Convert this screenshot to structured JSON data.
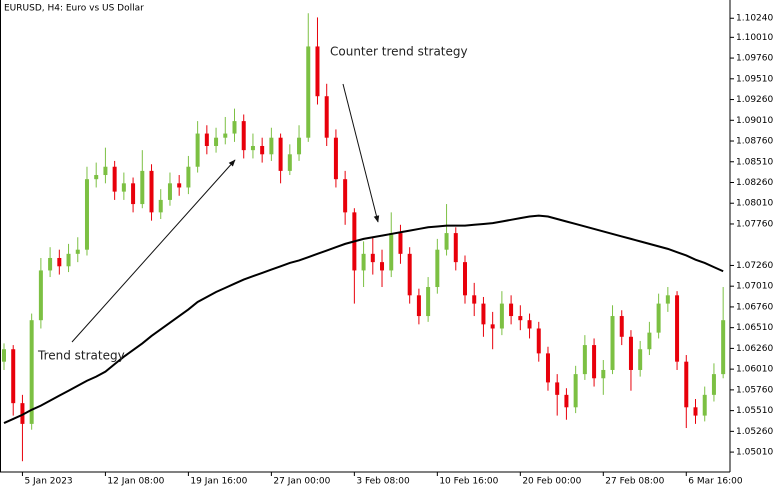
{
  "chart_data": {
    "type": "candlestick",
    "title": "EURUSD, H4:  Euro vs US Dollar",
    "annotations": [
      "Counter trend strategy",
      "Trend strategy"
    ],
    "categories": [
      null,
      null,
      "5 Jan 2023",
      null,
      null,
      null,
      null,
      null,
      null,
      null,
      null,
      "12 Jan 08:00",
      null,
      null,
      null,
      null,
      null,
      null,
      null,
      null,
      "19 Jan 16:00",
      null,
      null,
      null,
      null,
      null,
      null,
      null,
      null,
      "27 Jan 00:00",
      null,
      null,
      null,
      null,
      null,
      null,
      null,
      null,
      "3 Feb 08:00",
      null,
      null,
      null,
      null,
      null,
      null,
      null,
      null,
      "10 Feb 16:00",
      null,
      null,
      null,
      null,
      null,
      null,
      null,
      null,
      "20 Feb 00:00",
      null,
      null,
      null,
      null,
      null,
      null,
      null,
      null,
      "27 Feb 08:00",
      null,
      null,
      null,
      null,
      null,
      null,
      null,
      null,
      "6 Mar 16:00",
      null,
      null,
      null,
      null
    ],
    "open": [
      1.061,
      1.0625,
      1.056,
      1.0535,
      1.066,
      1.072,
      1.0735,
      1.0725,
      1.074,
      1.0745,
      1.083,
      1.0835,
      1.0845,
      1.0815,
      1.0825,
      1.08,
      1.084,
      1.079,
      1.0805,
      1.0825,
      1.082,
      1.0845,
      1.0885,
      1.087,
      1.088,
      1.0885,
      1.09,
      1.0865,
      1.087,
      1.086,
      1.088,
      1.084,
      1.086,
      1.088,
      1.099,
      1.093,
      1.088,
      1.083,
      1.079,
      1.072,
      1.074,
      1.073,
      1.072,
      1.0765,
      1.074,
      1.069,
      1.0665,
      1.07,
      1.0745,
      1.0765,
      1.073,
      1.069,
      1.068,
      1.0655,
      1.065,
      1.068,
      1.0665,
      1.066,
      1.065,
      1.062,
      1.0585,
      1.057,
      1.0555,
      1.0595,
      1.063,
      1.059,
      1.06,
      1.0665,
      1.064,
      1.06,
      1.0625,
      1.0645,
      1.068,
      1.069,
      1.061,
      1.0555,
      1.0545,
      1.057,
      1.0595
    ],
    "high": [
      1.0632,
      1.063,
      1.057,
      1.0668,
      1.0735,
      1.0748,
      1.0745,
      1.0752,
      1.076,
      1.0845,
      1.085,
      1.0868,
      1.0852,
      1.0838,
      1.0832,
      1.0865,
      1.0848,
      1.0818,
      1.0838,
      1.0835,
      1.0858,
      1.09,
      1.0895,
      1.0892,
      1.0905,
      1.0915,
      1.0908,
      1.0885,
      1.088,
      1.0892,
      1.0885,
      1.0872,
      1.0895,
      1.103,
      1.1025,
      1.0945,
      1.089,
      1.084,
      1.0795,
      1.0755,
      1.076,
      1.0745,
      1.079,
      1.0775,
      1.0748,
      1.0698,
      1.0712,
      1.0758,
      1.08,
      1.0772,
      1.0738,
      1.0705,
      1.0688,
      1.067,
      1.0695,
      1.069,
      1.0678,
      1.0668,
      1.0658,
      1.0628,
      1.0595,
      1.0578,
      1.0605,
      1.0642,
      1.0638,
      1.0612,
      1.0678,
      1.0672,
      1.0648,
      1.0635,
      1.0658,
      1.0692,
      1.07,
      1.0695,
      1.0618,
      1.0565,
      1.058,
      1.0608,
      1.07
    ],
    "low": [
      1.06,
      1.0545,
      1.049,
      1.0528,
      1.065,
      1.0712,
      1.0715,
      1.0718,
      1.073,
      1.0738,
      1.082,
      1.0825,
      1.0805,
      1.0805,
      1.079,
      1.0795,
      1.078,
      1.0782,
      1.0798,
      1.081,
      1.0812,
      1.0838,
      1.086,
      1.0862,
      1.0872,
      1.0875,
      1.0855,
      1.0855,
      1.085,
      1.0852,
      1.0825,
      1.0835,
      1.0852,
      1.0875,
      1.092,
      1.087,
      1.082,
      1.0775,
      1.068,
      1.07,
      1.0715,
      1.07,
      1.0712,
      1.0728,
      1.068,
      1.0655,
      1.0658,
      1.0692,
      1.0738,
      1.072,
      1.068,
      1.0665,
      1.064,
      1.0625,
      1.0642,
      1.0655,
      1.0648,
      1.0638,
      1.061,
      1.0575,
      1.0545,
      1.054,
      1.0548,
      1.0588,
      1.058,
      1.057,
      1.0595,
      1.063,
      1.0575,
      1.0592,
      1.0618,
      1.0638,
      1.067,
      1.06,
      1.053,
      1.0535,
      1.0538,
      1.0562,
      1.059
    ],
    "close": [
      1.0625,
      1.056,
      1.0535,
      1.066,
      1.072,
      1.0735,
      1.0725,
      1.074,
      1.0745,
      1.083,
      1.0835,
      1.0845,
      1.0815,
      1.0825,
      1.08,
      1.084,
      1.079,
      1.0805,
      1.0825,
      1.082,
      1.0845,
      1.0885,
      1.087,
      1.088,
      1.0885,
      1.09,
      1.0865,
      1.087,
      1.086,
      1.088,
      1.084,
      1.086,
      1.088,
      1.099,
      1.093,
      1.088,
      1.083,
      1.079,
      1.072,
      1.074,
      1.073,
      1.072,
      1.0765,
      1.074,
      1.069,
      1.0665,
      1.07,
      1.0745,
      1.0765,
      1.073,
      1.069,
      1.068,
      1.0655,
      1.065,
      1.068,
      1.0665,
      1.066,
      1.065,
      1.062,
      1.0585,
      1.057,
      1.0555,
      1.0595,
      1.063,
      1.059,
      1.06,
      1.0665,
      1.064,
      1.06,
      1.0625,
      1.0645,
      1.068,
      1.069,
      1.061,
      1.0555,
      1.0545,
      1.057,
      1.0595,
      1.066
    ],
    "moving_average": {
      "color": "#000000",
      "values": [
        1.0536,
        1.0541,
        1.0546,
        1.0552,
        1.0557,
        1.0563,
        1.0569,
        1.0575,
        1.0581,
        1.0587,
        1.0592,
        1.0598,
        1.0607,
        1.0616,
        1.0624,
        1.0632,
        1.0641,
        1.0649,
        1.0657,
        1.0665,
        1.0673,
        1.0682,
        1.0688,
        1.0694,
        1.0699,
        1.0704,
        1.0709,
        1.0713,
        1.0717,
        1.0721,
        1.0725,
        1.0729,
        1.0732,
        1.0736,
        1.074,
        1.0744,
        1.0748,
        1.0752,
        1.0755,
        1.0758,
        1.076,
        1.0762,
        1.0764,
        1.0766,
        1.0768,
        1.077,
        1.0772,
        1.0773,
        1.0774,
        1.0774,
        1.0774,
        1.0775,
        1.0776,
        1.0777,
        1.0779,
        1.0781,
        1.0783,
        1.0785,
        1.0786,
        1.0785,
        1.0782,
        1.0779,
        1.0776,
        1.0773,
        1.077,
        1.0767,
        1.0764,
        1.0761,
        1.0758,
        1.0755,
        1.0752,
        1.0749,
        1.0746,
        1.0742,
        1.0738,
        1.0733,
        1.0729,
        1.0724,
        1.0719
      ]
    },
    "up_color": "#7cc043",
    "down_color": "#e8000b",
    "ylim": [
      1.0477,
      1.1046
    ],
    "yticks": [
      {
        "value": 1.1024,
        "label": "1.10240"
      },
      {
        "value": 1.1001,
        "label": "1.10010"
      },
      {
        "value": 1.0976,
        "label": "1.09760"
      },
      {
        "value": 1.0951,
        "label": "1.09510"
      },
      {
        "value": 1.0926,
        "label": "1.09260"
      },
      {
        "value": 1.0901,
        "label": "1.09010"
      },
      {
        "value": 1.0876,
        "label": "1.08760"
      },
      {
        "value": 1.0851,
        "label": "1.08510"
      },
      {
        "value": 1.0826,
        "label": "1.08260"
      },
      {
        "value": 1.0801,
        "label": "1.08010"
      },
      {
        "value": 1.0776,
        "label": "1.07760"
      },
      {
        "value": 1.0726,
        "label": "1.07260"
      },
      {
        "value": 1.0701,
        "label": "1.07010"
      },
      {
        "value": 1.0676,
        "label": "1.06760"
      },
      {
        "value": 1.0651,
        "label": "1.06510"
      },
      {
        "value": 1.0626,
        "label": "1.06260"
      },
      {
        "value": 1.0601,
        "label": "1.06010"
      },
      {
        "value": 1.0576,
        "label": "1.05760"
      },
      {
        "value": 1.0551,
        "label": "1.05510"
      },
      {
        "value": 1.0526,
        "label": "1.05260"
      },
      {
        "value": 1.0501,
        "label": "1.05010"
      }
    ]
  }
}
